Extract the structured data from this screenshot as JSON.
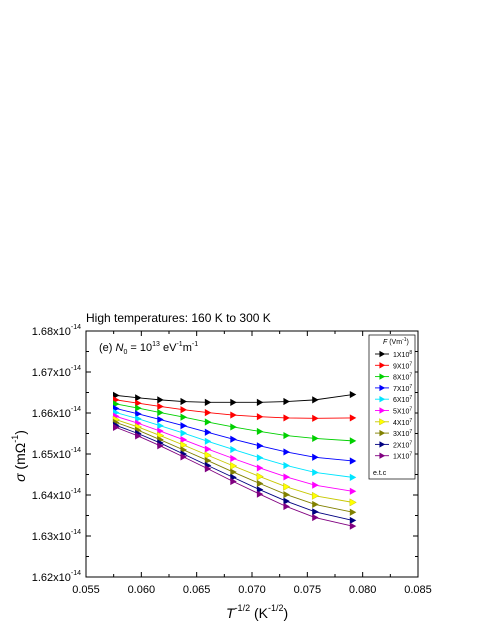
{
  "chart_data": {
    "type": "line",
    "title": "High temperatures: 160 K to 300 K",
    "annotation": {
      "prefix": "(e) ",
      "n_sym": "N",
      "n_sub": "0",
      "eq": " = 10",
      "exp": "13",
      "unit1": " eV",
      "unit1_sup": "-1",
      "unit2": "m",
      "unit2_sup": "-1"
    },
    "xlabel": {
      "sym": "T",
      "sup": "-1/2",
      "unit_open": " (K",
      "unit_sup": "-1/2",
      "unit_close": ")"
    },
    "ylabel": {
      "sym": "σ",
      "unit_open": " (mΩ",
      "unit_sup": "-1",
      "unit_close": ")"
    },
    "xlim": [
      0.055,
      0.085
    ],
    "ylim": [
      1.62e-14,
      1.68e-14
    ],
    "xticks": [
      "0.055",
      "0.060",
      "0.065",
      "0.070",
      "0.075",
      "0.080",
      "0.085"
    ],
    "yticks": [
      {
        "mant": "1.62x10",
        "exp": "-14",
        "value": 1.62e-14
      },
      {
        "mant": "1.63x10",
        "exp": "-14",
        "value": 1.63e-14
      },
      {
        "mant": "1.64x10",
        "exp": "-14",
        "value": 1.64e-14
      },
      {
        "mant": "1.65x10",
        "exp": "-14",
        "value": 1.65e-14
      },
      {
        "mant": "1.66x10",
        "exp": "-14",
        "value": 1.66e-14
      },
      {
        "mant": "1.67x10",
        "exp": "-14",
        "value": 1.67e-14
      },
      {
        "mant": "1.68x10",
        "exp": "-14",
        "value": 1.68e-14
      }
    ],
    "legend": {
      "placement": "top-right",
      "title_sym": "F",
      "title_unit": " (Vm",
      "title_sup": "-1",
      "title_close": ")",
      "footer": "e.t.c"
    },
    "grid": false,
    "x": [
      0.0577,
      0.0597,
      0.0617,
      0.0638,
      0.066,
      0.0683,
      0.0707,
      0.0731,
      0.0757,
      0.0791
    ],
    "series": [
      {
        "name": "1X10",
        "exp": "8",
        "color": "#000000",
        "marker": "triangle-right",
        "values": [
          1.6643e-14,
          1.6637e-14,
          1.6632e-14,
          1.6628e-14,
          1.6626e-14,
          1.6626e-14,
          1.6626e-14,
          1.6628e-14,
          1.6632e-14,
          1.6645e-14
        ]
      },
      {
        "name": "9X10",
        "exp": "7",
        "color": "#ff0000",
        "marker": "triangle-right",
        "values": [
          1.6632e-14,
          1.6624e-14,
          1.6616e-14,
          1.6608e-14,
          1.6601e-14,
          1.6595e-14,
          1.6591e-14,
          1.6588e-14,
          1.6587e-14,
          1.6588e-14
        ]
      },
      {
        "name": "8X10",
        "exp": "7",
        "color": "#00d000",
        "marker": "triangle-right",
        "values": [
          1.6622e-14,
          1.6612e-14,
          1.6601e-14,
          1.659e-14,
          1.6578e-14,
          1.6566e-14,
          1.6555e-14,
          1.6545e-14,
          1.6538e-14,
          1.6532e-14
        ]
      },
      {
        "name": "7X10",
        "exp": "7",
        "color": "#0000ff",
        "marker": "triangle-right",
        "values": [
          1.6611e-14,
          1.6598e-14,
          1.6584e-14,
          1.6569e-14,
          1.6553e-14,
          1.6536e-14,
          1.652e-14,
          1.6505e-14,
          1.6492e-14,
          1.6483e-14
        ]
      },
      {
        "name": "6X10",
        "exp": "7",
        "color": "#00e5ff",
        "marker": "triangle-right",
        "values": [
          1.6601e-14,
          1.6586e-14,
          1.6569e-14,
          1.6551e-14,
          1.6531e-14,
          1.6511e-14,
          1.6491e-14,
          1.6472e-14,
          1.6455e-14,
          1.6443e-14
        ]
      },
      {
        "name": "5X10",
        "exp": "7",
        "color": "#ff00ff",
        "marker": "triangle-right",
        "values": [
          1.6592e-14,
          1.6575e-14,
          1.6556e-14,
          1.6535e-14,
          1.6512e-14,
          1.6489e-14,
          1.6466e-14,
          1.6444e-14,
          1.6424e-14,
          1.6409e-14
        ]
      },
      {
        "name": "4X10",
        "exp": "7",
        "color": "#ffff00",
        "marker": "triangle-right",
        "values": [
          1.6584e-14,
          1.6566e-14,
          1.6545e-14,
          1.6522e-14,
          1.6497e-14,
          1.6471e-14,
          1.6445e-14,
          1.642e-14,
          1.6398e-14,
          1.6382e-14
        ]
      },
      {
        "name": "3X10",
        "exp": "7",
        "color": "#808000",
        "marker": "triangle-right",
        "values": [
          1.6577e-14,
          1.6558e-14,
          1.6535e-14,
          1.651e-14,
          1.6484e-14,
          1.6456e-14,
          1.6428e-14,
          1.6401e-14,
          1.6377e-14,
          1.6358e-14
        ]
      },
      {
        "name": "2X10",
        "exp": "7",
        "color": "#000080",
        "marker": "triangle-right",
        "values": [
          1.657e-14,
          1.655e-14,
          1.6527e-14,
          1.65e-14,
          1.6472e-14,
          1.6443e-14,
          1.6413e-14,
          1.6385e-14,
          1.6359e-14,
          1.6338e-14
        ]
      },
      {
        "name": "1X10",
        "exp": "7",
        "color": "#800080",
        "marker": "triangle-right",
        "values": [
          1.6565e-14,
          1.6544e-14,
          1.652e-14,
          1.6493e-14,
          1.6464e-14,
          1.6433e-14,
          1.6402e-14,
          1.6372e-14,
          1.6345e-14,
          1.6324e-14
        ]
      }
    ]
  }
}
